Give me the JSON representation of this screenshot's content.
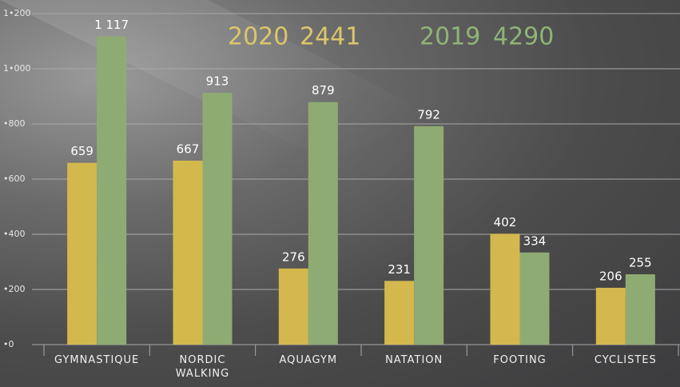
{
  "chart_data": {
    "type": "bar",
    "categories": [
      "GYMNASTIQUE",
      "NORDIC WALKING",
      "AQUAGYM",
      "NATATION",
      "FOOTING",
      "CYCLISTES"
    ],
    "series": [
      {
        "name": "2020",
        "total": 2441,
        "color": "#d3b84d",
        "values": [
          659,
          667,
          276,
          231,
          402,
          206
        ]
      },
      {
        "name": "2019",
        "total": 4290,
        "color": "#8fab74",
        "values": [
          1117,
          913,
          879,
          792,
          334,
          255
        ],
        "value_labels": [
          "1 117",
          "913",
          "879",
          "792",
          "334",
          "255"
        ]
      }
    ],
    "ylim": [
      0,
      1200
    ],
    "yticks": [
      {
        "value": 0,
        "label": "•0"
      },
      {
        "value": 200,
        "label": "•200"
      },
      {
        "value": 400,
        "label": "•400"
      },
      {
        "value": 600,
        "label": "•600"
      },
      {
        "value": 800,
        "label": "•800"
      },
      {
        "value": 1000,
        "label": "1•000"
      },
      {
        "value": 1200,
        "label": "1•200"
      }
    ],
    "grid": true
  }
}
